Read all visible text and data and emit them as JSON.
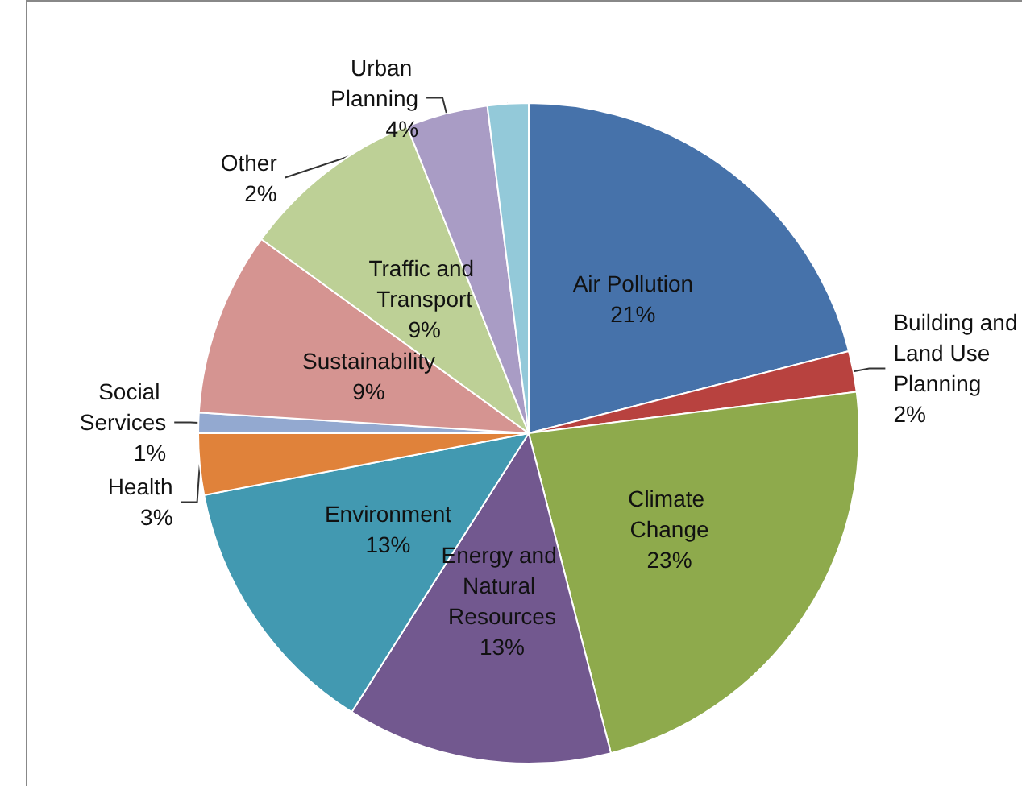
{
  "chart_data": {
    "type": "pie",
    "categories": [
      "Air Pollution",
      "Building and Land Use Planning",
      "Climate Change",
      "Energy and Natural Resources",
      "Environment",
      "Health",
      "Social Services",
      "Sustainability",
      "Traffic and Transport",
      "Urban Planning",
      "Other"
    ],
    "values": [
      21,
      2,
      23,
      13,
      13,
      3,
      1,
      9,
      9,
      4,
      2
    ],
    "value_labels": [
      "21%",
      "2%",
      "23%",
      "13%",
      "13%",
      "3%",
      "1%",
      "9%",
      "9%",
      "4%",
      "2%"
    ],
    "colors": [
      "#4672aa",
      "#b8423f",
      "#8eaa4c",
      "#72588f",
      "#4299b1",
      "#e0823a",
      "#93a9d0",
      "#d59491",
      "#bdd096",
      "#a99cc5",
      "#93c9d9"
    ]
  }
}
